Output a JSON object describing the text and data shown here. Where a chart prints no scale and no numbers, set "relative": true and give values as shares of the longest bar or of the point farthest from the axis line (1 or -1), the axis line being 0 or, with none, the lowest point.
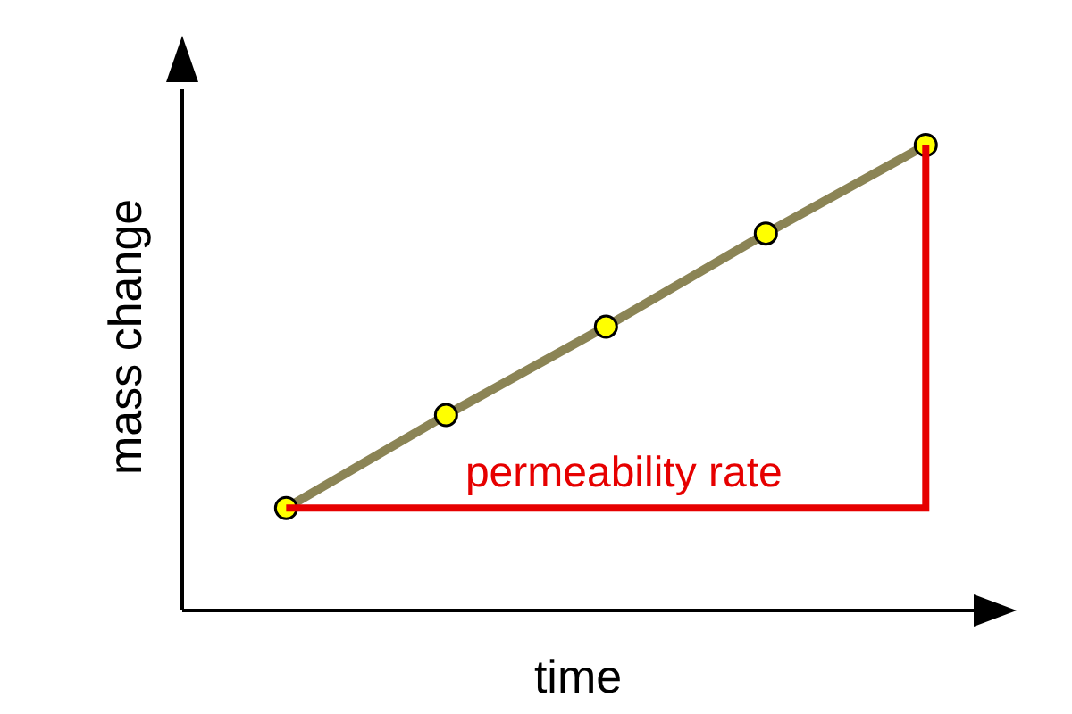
{
  "chart_data": {
    "type": "line",
    "relative": true,
    "xlabel": "time",
    "ylabel": "mass change",
    "categories": [
      null,
      null,
      null,
      null,
      null
    ],
    "tick_labels": false,
    "marker": "circle",
    "series": [
      {
        "color": "#8b8455",
        "values": [
          0.22,
          0.42,
          0.61,
          0.81,
          1
        ]
      }
    ],
    "annotations": [
      "permeability rate"
    ]
  }
}
